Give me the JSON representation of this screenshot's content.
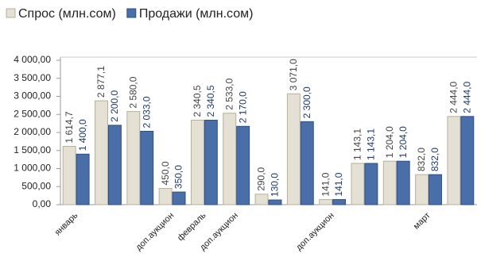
{
  "chart_data": {
    "type": "bar",
    "categories": [
      "январь",
      null,
      null,
      "доп.аукцион",
      "февраль",
      "доп.аукцион",
      null,
      null,
      "доп.аукцион",
      null,
      null,
      "март",
      null
    ],
    "series": [
      {
        "name": "Спрос (млн.сом)",
        "color": "#e4e0d4",
        "values": [
          1614.7,
          2877.1,
          2580.0,
          450.0,
          2340.5,
          2533.0,
          290.0,
          3071.0,
          141.0,
          1143.1,
          1204.0,
          832.0,
          2444.0
        ],
        "value_labels": [
          "1 614,7",
          "2 877,1",
          "2 580,0",
          "450,0",
          "2 340,5",
          "2 533,0",
          "290,0",
          "3 071,0",
          "141,0",
          "1 143,1",
          "1 204,0",
          "832,0",
          "2 444,0"
        ]
      },
      {
        "name": "Продажи (млн.сом)",
        "color": "#4a6ea8",
        "values": [
          1400.0,
          2200.0,
          2033.0,
          350.0,
          2340.5,
          2170.0,
          130.0,
          2300.0,
          141.0,
          1143.1,
          1204.0,
          832.0,
          2444.0
        ],
        "value_labels": [
          "1 400,0",
          "2 200,0",
          "2 033,0",
          "350,0",
          "2 340,5",
          "2 170,0",
          "130,0",
          "2 300,0",
          "141,0",
          "1 143,1",
          "1 204,0",
          "832,0",
          "2 444,0"
        ]
      }
    ],
    "ylim": [
      0,
      4000
    ],
    "yticks": [
      {
        "value": 0,
        "label": "0,00"
      },
      {
        "value": 500,
        "label": "500,00"
      },
      {
        "value": 1000,
        "label": "1 000,00"
      },
      {
        "value": 1500,
        "label": "1 500,00"
      },
      {
        "value": 2000,
        "label": "2 000,00"
      },
      {
        "value": 2500,
        "label": "2 500,00"
      },
      {
        "value": 3000,
        "label": "3 000,00"
      },
      {
        "value": 3500,
        "label": "3 500,00"
      },
      {
        "value": 4000,
        "label": "4 000,00"
      }
    ],
    "grid": false
  }
}
